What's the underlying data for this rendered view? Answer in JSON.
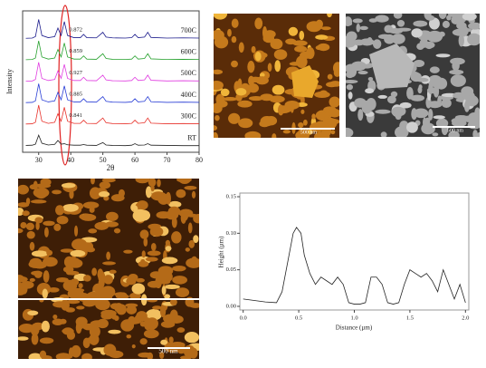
{
  "chart_data": [
    {
      "type": "line",
      "x_label": "2θ",
      "y_label": "Intensity",
      "x": [
        26,
        28,
        29,
        30,
        31,
        33,
        35,
        36,
        37,
        38,
        39,
        41,
        43,
        44,
        45,
        48,
        50,
        51,
        53,
        57,
        59,
        60,
        61,
        63,
        64,
        65,
        70,
        75,
        80
      ],
      "xlim": [
        25,
        80
      ],
      "xticks": [
        30,
        40,
        50,
        60,
        70,
        80
      ],
      "ylim": [
        0,
        6.6
      ],
      "series": [
        {
          "name": "RT",
          "color": "#222222",
          "values": [
            0.32,
            0.33,
            0.38,
            0.8,
            0.42,
            0.34,
            0.37,
            0.55,
            0.38,
            0.4,
            0.35,
            0.33,
            0.33,
            0.36,
            0.33,
            0.32,
            0.45,
            0.34,
            0.32,
            0.31,
            0.33,
            0.4,
            0.33,
            0.34,
            0.4,
            0.33,
            0.32,
            0.31,
            0.31
          ]
        },
        {
          "name": "300C",
          "color": "#e8322b",
          "values": [
            1.32,
            1.33,
            1.4,
            2.2,
            1.45,
            1.35,
            1.4,
            1.8,
            1.45,
            2.1,
            1.45,
            1.35,
            1.35,
            1.5,
            1.35,
            1.34,
            1.6,
            1.38,
            1.34,
            1.33,
            1.35,
            1.5,
            1.35,
            1.38,
            1.6,
            1.36,
            1.33,
            1.34,
            1.33
          ]
        },
        {
          "name": "400C",
          "color": "#2a3fd6",
          "values": [
            2.32,
            2.33,
            2.4,
            3.2,
            2.45,
            2.35,
            2.4,
            2.8,
            2.45,
            3.1,
            2.45,
            2.35,
            2.35,
            2.5,
            2.35,
            2.34,
            2.6,
            2.38,
            2.34,
            2.33,
            2.35,
            2.5,
            2.35,
            2.38,
            2.6,
            2.36,
            2.33,
            2.34,
            2.33
          ]
        },
        {
          "name": "500C",
          "color": "#e03ce0",
          "values": [
            3.32,
            3.33,
            3.4,
            4.2,
            3.45,
            3.35,
            3.4,
            3.8,
            3.45,
            4.1,
            3.45,
            3.35,
            3.35,
            3.5,
            3.35,
            3.34,
            3.6,
            3.38,
            3.34,
            3.33,
            3.35,
            3.5,
            3.35,
            3.38,
            3.6,
            3.36,
            3.33,
            3.34,
            3.33
          ]
        },
        {
          "name": "600C",
          "color": "#27a12e",
          "values": [
            4.32,
            4.33,
            4.4,
            5.2,
            4.45,
            4.35,
            4.4,
            4.8,
            4.45,
            5.1,
            4.45,
            4.35,
            4.35,
            4.5,
            4.35,
            4.34,
            4.6,
            4.38,
            4.34,
            4.33,
            4.35,
            4.5,
            4.35,
            4.38,
            4.6,
            4.36,
            4.33,
            4.34,
            4.33
          ]
        },
        {
          "name": "700C",
          "color": "#1c1c8c",
          "values": [
            5.32,
            5.33,
            5.4,
            6.2,
            5.45,
            5.35,
            5.4,
            5.8,
            5.45,
            6.1,
            5.45,
            5.35,
            5.35,
            5.5,
            5.35,
            5.34,
            5.6,
            5.38,
            5.34,
            5.33,
            5.35,
            5.5,
            5.35,
            5.38,
            5.6,
            5.36,
            5.33,
            5.34,
            5.33
          ]
        }
      ],
      "annotations": [
        "0.872",
        "0.859",
        "0.927",
        "0.885",
        "0.841"
      ]
    },
    {
      "type": "line",
      "x_label": "Distance (µm)",
      "y_label": "Height (µm)",
      "color": "#222222",
      "x": [
        0.0,
        0.1,
        0.2,
        0.3,
        0.35,
        0.4,
        0.45,
        0.48,
        0.52,
        0.55,
        0.6,
        0.65,
        0.7,
        0.75,
        0.8,
        0.85,
        0.9,
        0.95,
        1.0,
        1.05,
        1.1,
        1.15,
        1.2,
        1.25,
        1.3,
        1.35,
        1.4,
        1.45,
        1.5,
        1.55,
        1.6,
        1.65,
        1.7,
        1.75,
        1.8,
        1.85,
        1.9,
        1.95,
        2.0
      ],
      "values": [
        0.01,
        0.008,
        0.006,
        0.005,
        0.02,
        0.06,
        0.1,
        0.108,
        0.1,
        0.07,
        0.045,
        0.03,
        0.04,
        0.035,
        0.03,
        0.04,
        0.03,
        0.005,
        0.003,
        0.003,
        0.005,
        0.04,
        0.04,
        0.03,
        0.005,
        0.003,
        0.005,
        0.03,
        0.05,
        0.045,
        0.04,
        0.045,
        0.035,
        0.02,
        0.05,
        0.03,
        0.01,
        0.03,
        0.005
      ],
      "xlim": [
        -0.03,
        2.03
      ],
      "ylim": [
        -0.005,
        0.155
      ],
      "xticks": [
        {
          "value": 0,
          "label": "0.0"
        },
        {
          "value": 0.5,
          "label": "0.5"
        },
        {
          "value": 1,
          "label": "1.0"
        },
        {
          "value": 1.5,
          "label": "1.5"
        },
        {
          "value": 2,
          "label": "2.0"
        }
      ],
      "yticks": [
        {
          "value": 0,
          "label": "0.00"
        },
        {
          "value": 0.05,
          "label": "0.05"
        },
        {
          "value": 0.1,
          "label": "0.10"
        },
        {
          "value": 0.15,
          "label": "0.15"
        }
      ]
    }
  ],
  "images": [
    {
      "scale_bar": "500 nm"
    },
    {
      "scale_bar": "500 nm"
    },
    {
      "scale_bar": "500 nm"
    }
  ]
}
